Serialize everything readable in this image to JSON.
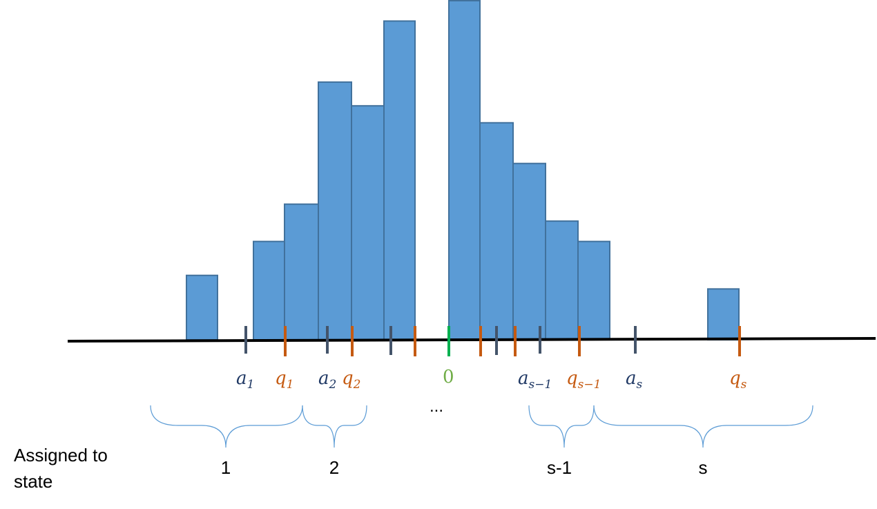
{
  "colors": {
    "bar_fill": "#5b9bd5",
    "bar_stroke": "#41719c",
    "a_tick": "#44546a",
    "q_tick": "#c55a11",
    "zero_tick": "#00b050",
    "a_label": "#1f3864",
    "q_label": "#c55a11",
    "zero_label": "#70ad47",
    "brace": "#5b9bd5"
  },
  "histogram": {
    "description": "bar heights as relative frequencies",
    "bars": [
      {
        "bin": 1,
        "value": 0.19
      },
      {
        "bin": 2,
        "value": 0.29
      },
      {
        "bin": 3,
        "value": 0.4
      },
      {
        "bin": 4,
        "value": 0.76
      },
      {
        "bin": 5,
        "value": 0.69
      },
      {
        "bin": 6,
        "value": 0.94
      },
      {
        "bin": 7,
        "value": 1.0
      },
      {
        "bin": 8,
        "value": 0.64
      },
      {
        "bin": 9,
        "value": 0.52
      },
      {
        "bin": 10,
        "value": 0.35
      },
      {
        "bin": 11,
        "value": 0.29
      },
      {
        "bin": 12,
        "value": 0.15
      }
    ]
  },
  "labels": {
    "a1": {
      "base": "a",
      "sub": "1"
    },
    "q1": {
      "base": "q",
      "sub": "1"
    },
    "a2": {
      "base": "a",
      "sub": "2"
    },
    "q2": {
      "base": "q",
      "sub": "2"
    },
    "zero": "0",
    "a_s_minus_1": {
      "base": "a",
      "sub": "s−1"
    },
    "q_s_minus_1": {
      "base": "q",
      "sub": "s−1"
    },
    "a_s": {
      "base": "a",
      "sub": "s"
    },
    "q_s": {
      "base": "q",
      "sub": "s"
    },
    "ellipsis": "..."
  },
  "states": [
    {
      "label": "1"
    },
    {
      "label": "2"
    },
    {
      "label": "s-1"
    },
    {
      "label": "s"
    }
  ],
  "caption": "Assigned to state"
}
